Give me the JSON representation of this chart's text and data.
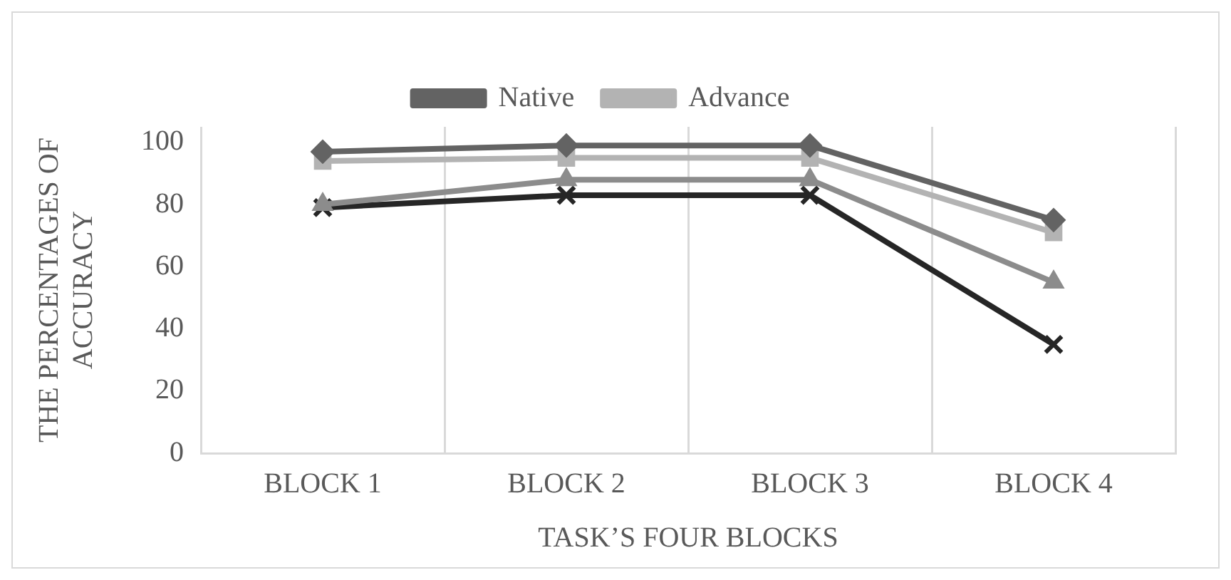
{
  "chart_data": {
    "type": "line",
    "xlabel": "TASK’S FOUR BLOCKS",
    "ylabel": "THE PERCENTAGES OF ACCURACY",
    "categories": [
      "BLOCK 1",
      "BLOCK 2",
      "BLOCK 3",
      "BLOCK 4"
    ],
    "series": [
      {
        "name": "Native",
        "color": "#636363",
        "marker": "diamond",
        "values": [
          97,
          99,
          99,
          75
        ]
      },
      {
        "name": "Advance",
        "color": "#b3b3b3",
        "marker": "square",
        "values": [
          94,
          95,
          95,
          71
        ]
      },
      {
        "color": "#8c8c8c",
        "marker": "triangle",
        "values": [
          80,
          88,
          88,
          55
        ]
      },
      {
        "color": "#262626",
        "marker": "cross",
        "values": [
          79,
          83,
          83,
          35
        ]
      }
    ],
    "ylim": [
      0,
      105
    ],
    "yticks": [
      0,
      20,
      40,
      60,
      80,
      100
    ],
    "grid": "x",
    "legend": "top",
    "line_style": "solid"
  }
}
